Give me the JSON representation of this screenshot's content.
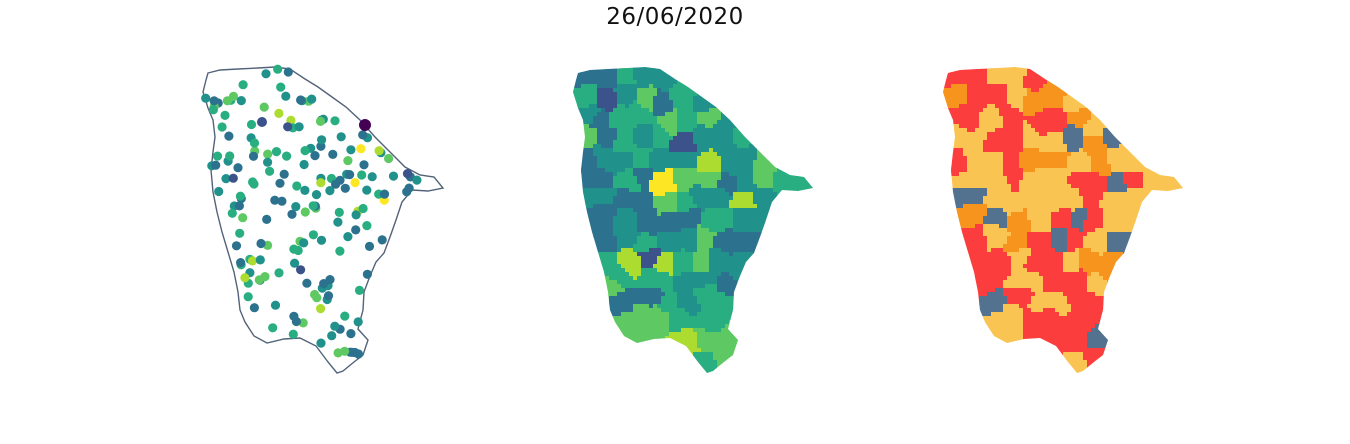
{
  "figure": {
    "title": "26/06/2020"
  },
  "colors": {
    "viridis": [
      "#440154",
      "#3b528b",
      "#2c728e",
      "#21918c",
      "#28ae80",
      "#5ec962",
      "#addc30",
      "#fde725"
    ],
    "categorical": [
      "#fc3d3d",
      "#f9c452",
      "#f7941d",
      "#52728f"
    ],
    "outline": "#52637a",
    "background": "#ffffff"
  },
  "panels": [
    {
      "id": "points",
      "kind": "point-map"
    },
    {
      "id": "choro-a",
      "kind": "choropleth-continuous"
    },
    {
      "id": "choro-b",
      "kind": "choropleth-categorical"
    }
  ]
}
